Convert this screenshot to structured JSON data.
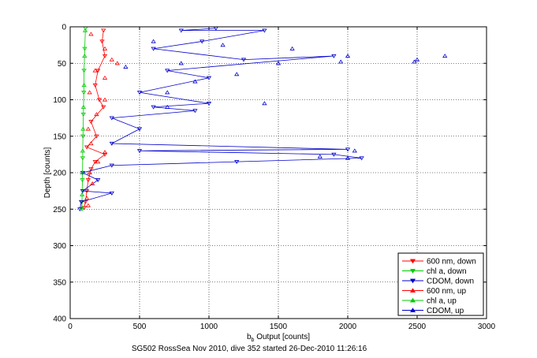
{
  "chart_data": {
    "type": "scatter",
    "xlabel_main": "b",
    "xlabel_sub": "b",
    "xlabel_rest": " Output [counts]",
    "ylabel": "Depth [counts]",
    "caption": "SG502 RossSea Nov 2010, dive 352 started 26-Dec-2010 11:26:16",
    "xlim": [
      0,
      3000
    ],
    "ylim": [
      0,
      400
    ],
    "y_reversed": true,
    "grid": true,
    "legend_position": "bottom-right",
    "xticks": [
      0,
      500,
      1000,
      1500,
      2000,
      2500,
      3000
    ],
    "yticks": [
      0,
      50,
      100,
      150,
      200,
      250,
      300,
      350,
      400
    ],
    "series": [
      {
        "name": "600 nm, down",
        "color": "#ff0000",
        "marker": "triangle-down",
        "line": true,
        "points": [
          [
            240,
            5
          ],
          [
            230,
            20
          ],
          [
            250,
            40
          ],
          [
            200,
            60
          ],
          [
            180,
            80
          ],
          [
            210,
            100
          ],
          [
            240,
            110
          ],
          [
            150,
            130
          ],
          [
            190,
            150
          ],
          [
            120,
            165
          ],
          [
            250,
            175
          ],
          [
            180,
            185
          ],
          [
            150,
            195
          ],
          [
            130,
            210
          ],
          [
            120,
            225
          ],
          [
            110,
            240
          ],
          [
            100,
            248
          ]
        ]
      },
      {
        "name": "chl a, down",
        "color": "#00cc00",
        "marker": "triangle-down",
        "line": true,
        "points": [
          [
            110,
            2
          ],
          [
            105,
            30
          ],
          [
            100,
            60
          ],
          [
            98,
            90
          ],
          [
            95,
            120
          ],
          [
            92,
            150
          ],
          [
            90,
            180
          ],
          [
            88,
            210
          ],
          [
            85,
            240
          ],
          [
            85,
            250
          ]
        ]
      },
      {
        "name": "CDOM, down",
        "color": "#0000cc",
        "marker": "triangle-down",
        "line": true,
        "points": [
          [
            1050,
            2
          ],
          [
            800,
            5
          ],
          [
            1400,
            5
          ],
          [
            950,
            20
          ],
          [
            600,
            30
          ],
          [
            1250,
            45
          ],
          [
            1900,
            40
          ],
          [
            700,
            60
          ],
          [
            1000,
            70
          ],
          [
            500,
            90
          ],
          [
            1000,
            105
          ],
          [
            600,
            110
          ],
          [
            900,
            115
          ],
          [
            300,
            125
          ],
          [
            500,
            140
          ],
          [
            300,
            160
          ],
          [
            2000,
            168
          ],
          [
            500,
            170
          ],
          [
            1900,
            175
          ],
          [
            2100,
            180
          ],
          [
            1200,
            185
          ],
          [
            300,
            190
          ],
          [
            90,
            200
          ],
          [
            200,
            210
          ],
          [
            90,
            225
          ],
          [
            300,
            228
          ],
          [
            80,
            240
          ],
          [
            70,
            250
          ]
        ]
      },
      {
        "name": "600 nm, up",
        "color": "#ff0000",
        "marker": "triangle-up",
        "line": false,
        "points": [
          [
            150,
            10
          ],
          [
            250,
            30
          ],
          [
            300,
            45
          ],
          [
            340,
            50
          ],
          [
            180,
            60
          ],
          [
            250,
            70
          ],
          [
            140,
            90
          ],
          [
            250,
            100
          ],
          [
            190,
            120
          ],
          [
            130,
            140
          ],
          [
            150,
            160
          ],
          [
            250,
            172
          ],
          [
            200,
            185
          ],
          [
            140,
            200
          ],
          [
            160,
            215
          ],
          [
            120,
            235
          ],
          [
            130,
            245
          ]
        ]
      },
      {
        "name": "chl a, up",
        "color": "#00cc00",
        "marker": "triangle-up",
        "line": false,
        "points": [
          [
            108,
            5
          ],
          [
            104,
            40
          ],
          [
            100,
            80
          ],
          [
            96,
            110
          ],
          [
            93,
            140
          ],
          [
            90,
            170
          ],
          [
            88,
            200
          ],
          [
            86,
            230
          ],
          [
            84,
            248
          ]
        ]
      },
      {
        "name": "CDOM, up",
        "color": "#0000cc",
        "marker": "triangle-up",
        "line": false,
        "points": [
          [
            600,
            20
          ],
          [
            1100,
            25
          ],
          [
            1600,
            30
          ],
          [
            2000,
            40
          ],
          [
            2700,
            40
          ],
          [
            2500,
            45
          ],
          [
            2480,
            48
          ],
          [
            1500,
            50
          ],
          [
            800,
            50
          ],
          [
            1950,
            48
          ],
          [
            400,
            55
          ],
          [
            1200,
            65
          ],
          [
            900,
            75
          ],
          [
            700,
            90
          ],
          [
            1400,
            105
          ],
          [
            700,
            110
          ],
          [
            2050,
            170
          ],
          [
            1800,
            178
          ],
          [
            2000,
            180
          ]
        ]
      }
    ]
  }
}
